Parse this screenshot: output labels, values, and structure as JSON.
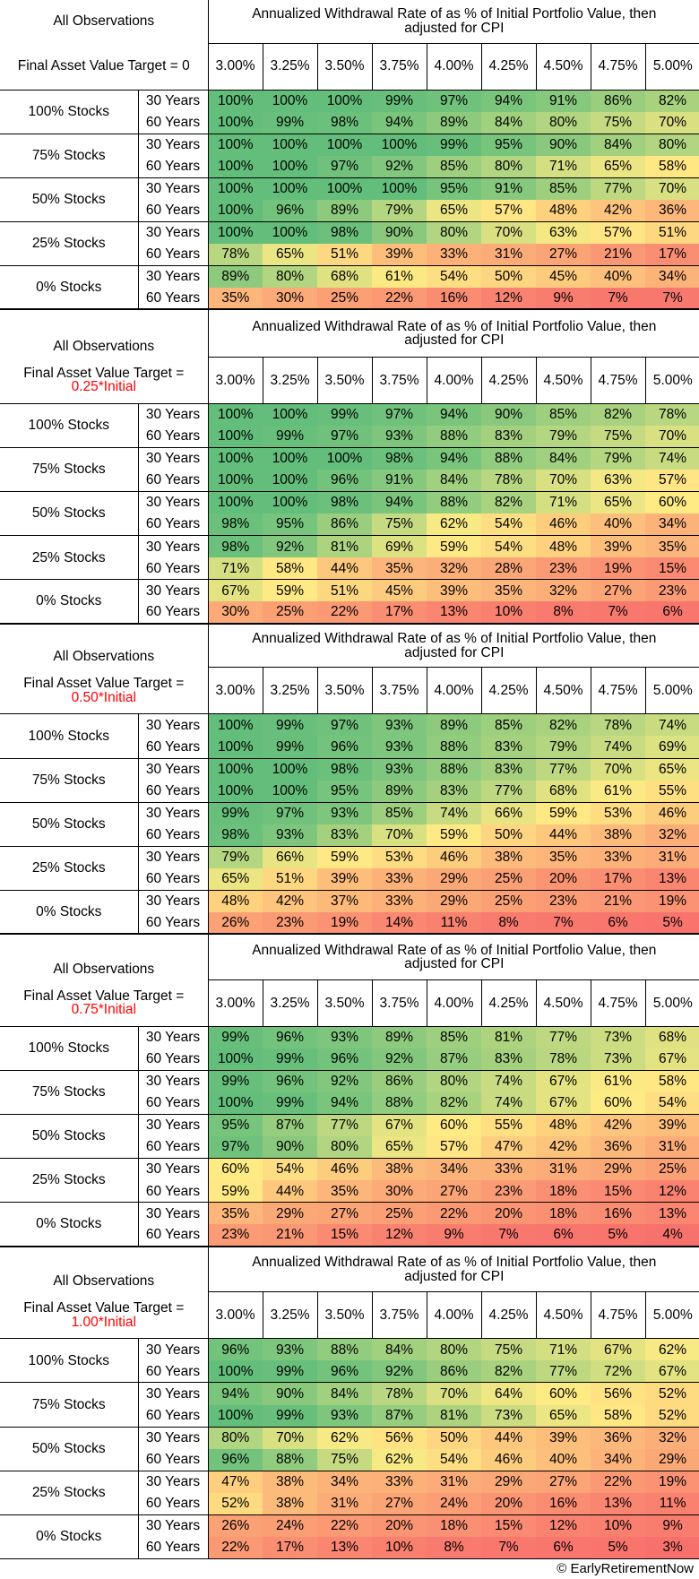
{
  "header": {
    "all_obs": "All Observations",
    "title": "Annualized Withdrawal Rate of as % of Initial Portfolio Value, then adjusted for CPI",
    "rates": [
      "3.00%",
      "3.25%",
      "3.50%",
      "3.75%",
      "4.00%",
      "4.25%",
      "4.50%",
      "4.75%",
      "5.00%"
    ]
  },
  "horizons": [
    "30 Years",
    "60 Years"
  ],
  "blocks": [
    {
      "target_prefix": "Final Asset Value Target = 0",
      "target_red": "",
      "target_suffix": "",
      "rows": [
        {
          "alloc": "100% Stocks",
          "y30": [
            100,
            100,
            100,
            99,
            97,
            94,
            91,
            86,
            82
          ],
          "y60": [
            100,
            99,
            98,
            94,
            89,
            84,
            80,
            75,
            70
          ]
        },
        {
          "alloc": "75% Stocks",
          "y30": [
            100,
            100,
            100,
            100,
            99,
            95,
            90,
            84,
            80
          ],
          "y60": [
            100,
            100,
            97,
            92,
            85,
            80,
            71,
            65,
            58
          ]
        },
        {
          "alloc": "50% Stocks",
          "y30": [
            100,
            100,
            100,
            100,
            95,
            91,
            85,
            77,
            70
          ],
          "y60": [
            100,
            96,
            89,
            79,
            65,
            57,
            48,
            42,
            36
          ]
        },
        {
          "alloc": "25% Stocks",
          "y30": [
            100,
            100,
            98,
            90,
            80,
            70,
            63,
            57,
            51
          ],
          "y60": [
            78,
            65,
            51,
            39,
            33,
            31,
            27,
            21,
            17
          ]
        },
        {
          "alloc": "0% Stocks",
          "y30": [
            89,
            80,
            68,
            61,
            54,
            50,
            45,
            40,
            34
          ],
          "y60": [
            35,
            30,
            25,
            22,
            16,
            12,
            9,
            7,
            7
          ]
        }
      ]
    },
    {
      "target_prefix": "Final Asset Value Target =",
      "target_red": "0.25",
      "target_suffix": "*Initial",
      "rows": [
        {
          "alloc": "100% Stocks",
          "y30": [
            100,
            100,
            99,
            97,
            94,
            90,
            85,
            82,
            78
          ],
          "y60": [
            100,
            99,
            97,
            93,
            88,
            83,
            79,
            75,
            70
          ]
        },
        {
          "alloc": "75% Stocks",
          "y30": [
            100,
            100,
            100,
            98,
            94,
            88,
            84,
            79,
            74
          ],
          "y60": [
            100,
            100,
            96,
            91,
            84,
            78,
            70,
            63,
            57
          ]
        },
        {
          "alloc": "50% Stocks",
          "y30": [
            100,
            100,
            98,
            94,
            88,
            82,
            71,
            65,
            60
          ],
          "y60": [
            98,
            95,
            86,
            75,
            62,
            54,
            46,
            40,
            34
          ]
        },
        {
          "alloc": "25% Stocks",
          "y30": [
            98,
            92,
            81,
            69,
            59,
            54,
            48,
            39,
            35
          ],
          "y60": [
            71,
            58,
            44,
            35,
            32,
            28,
            23,
            19,
            15
          ]
        },
        {
          "alloc": "0% Stocks",
          "y30": [
            67,
            59,
            51,
            45,
            39,
            35,
            32,
            27,
            23
          ],
          "y60": [
            30,
            25,
            22,
            17,
            13,
            10,
            8,
            7,
            6
          ]
        }
      ]
    },
    {
      "target_prefix": "Final Asset Value Target =",
      "target_red": "0.50",
      "target_suffix": "*Initial",
      "rows": [
        {
          "alloc": "100% Stocks",
          "y30": [
            100,
            99,
            97,
            93,
            89,
            85,
            82,
            78,
            74
          ],
          "y60": [
            100,
            99,
            96,
            93,
            88,
            83,
            79,
            74,
            69
          ]
        },
        {
          "alloc": "75% Stocks",
          "y30": [
            100,
            100,
            98,
            93,
            88,
            83,
            77,
            70,
            65
          ],
          "y60": [
            100,
            100,
            95,
            89,
            83,
            77,
            68,
            61,
            55
          ]
        },
        {
          "alloc": "50% Stocks",
          "y30": [
            99,
            97,
            93,
            85,
            74,
            66,
            59,
            53,
            46
          ],
          "y60": [
            98,
            93,
            83,
            70,
            59,
            50,
            44,
            38,
            32
          ]
        },
        {
          "alloc": "25% Stocks",
          "y30": [
            79,
            66,
            59,
            53,
            46,
            38,
            35,
            33,
            31
          ],
          "y60": [
            65,
            51,
            39,
            33,
            29,
            25,
            20,
            17,
            13
          ]
        },
        {
          "alloc": "0% Stocks",
          "y30": [
            48,
            42,
            37,
            33,
            29,
            25,
            23,
            21,
            19
          ],
          "y60": [
            26,
            23,
            19,
            14,
            11,
            8,
            7,
            6,
            5
          ]
        }
      ]
    },
    {
      "target_prefix": "Final Asset Value Target =",
      "target_red": "0.75",
      "target_suffix": "*Initial",
      "rows": [
        {
          "alloc": "100% Stocks",
          "y30": [
            99,
            96,
            93,
            89,
            85,
            81,
            77,
            73,
            68
          ],
          "y60": [
            100,
            99,
            96,
            92,
            87,
            83,
            78,
            73,
            67
          ]
        },
        {
          "alloc": "75% Stocks",
          "y30": [
            99,
            96,
            92,
            86,
            80,
            74,
            67,
            61,
            58
          ],
          "y60": [
            100,
            99,
            94,
            88,
            82,
            74,
            67,
            60,
            54
          ]
        },
        {
          "alloc": "50% Stocks",
          "y30": [
            95,
            87,
            77,
            67,
            60,
            55,
            48,
            42,
            39
          ],
          "y60": [
            97,
            90,
            80,
            65,
            57,
            47,
            42,
            36,
            31
          ]
        },
        {
          "alloc": "25% Stocks",
          "y30": [
            60,
            54,
            46,
            38,
            34,
            33,
            31,
            29,
            25
          ],
          "y60": [
            59,
            44,
            35,
            30,
            27,
            23,
            18,
            15,
            12
          ]
        },
        {
          "alloc": "0% Stocks",
          "y30": [
            35,
            29,
            27,
            25,
            22,
            20,
            18,
            16,
            13
          ],
          "y60": [
            23,
            21,
            15,
            12,
            9,
            7,
            6,
            5,
            4
          ]
        }
      ]
    },
    {
      "target_prefix": "Final Asset Value Target =",
      "target_red": "1.00",
      "target_suffix": "*Initial",
      "rows": [
        {
          "alloc": "100% Stocks",
          "y30": [
            96,
            93,
            88,
            84,
            80,
            75,
            71,
            67,
            62
          ],
          "y60": [
            100,
            99,
            96,
            92,
            86,
            82,
            77,
            72,
            67
          ]
        },
        {
          "alloc": "75% Stocks",
          "y30": [
            94,
            90,
            84,
            78,
            70,
            64,
            60,
            56,
            52
          ],
          "y60": [
            100,
            99,
            93,
            87,
            81,
            73,
            65,
            58,
            52
          ]
        },
        {
          "alloc": "50% Stocks",
          "y30": [
            80,
            70,
            62,
            56,
            50,
            44,
            39,
            36,
            32
          ],
          "y60": [
            96,
            88,
            75,
            62,
            54,
            46,
            40,
            34,
            29
          ]
        },
        {
          "alloc": "25% Stocks",
          "y30": [
            47,
            38,
            34,
            33,
            31,
            29,
            27,
            22,
            19
          ],
          "y60": [
            52,
            38,
            31,
            27,
            24,
            20,
            16,
            13,
            11
          ]
        },
        {
          "alloc": "0% Stocks",
          "y30": [
            26,
            24,
            22,
            20,
            18,
            15,
            12,
            10,
            9
          ],
          "y60": [
            22,
            17,
            13,
            10,
            8,
            7,
            6,
            5,
            3
          ]
        }
      ]
    }
  ],
  "colors": {
    "high": "#63be7b",
    "mid": "#ffeb84",
    "low": "#f8696b"
  },
  "copyright": "© EarlyRetirementNow"
}
